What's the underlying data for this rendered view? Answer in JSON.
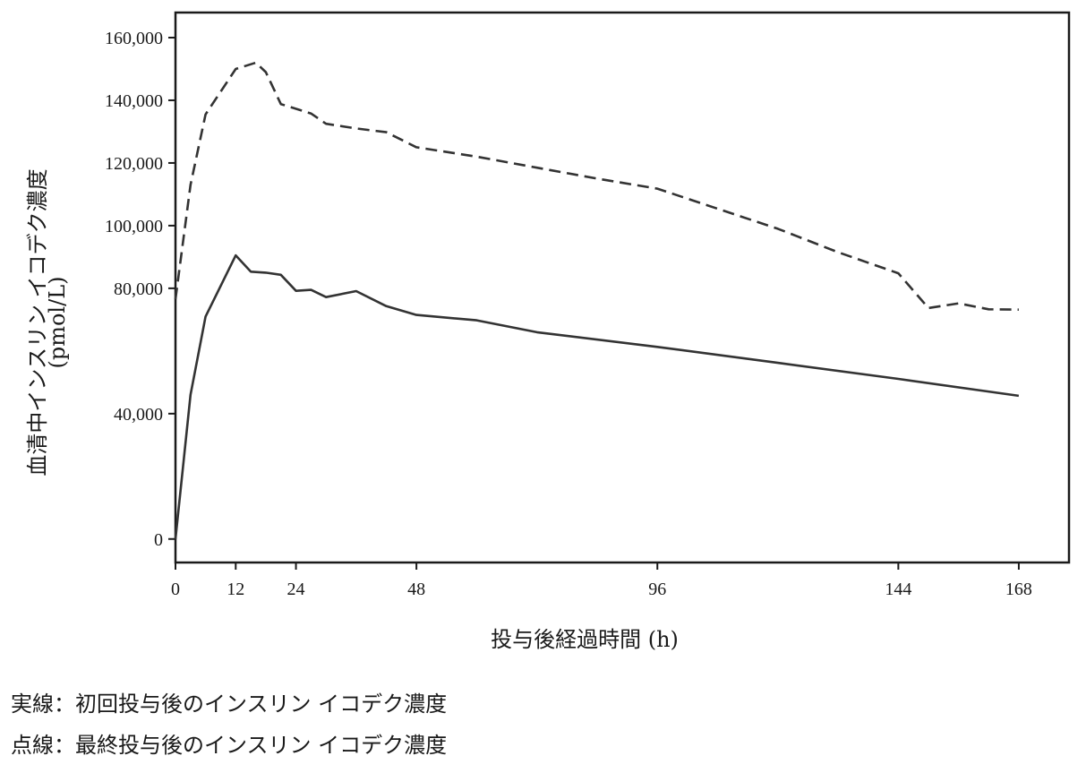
{
  "chart_data": {
    "type": "line",
    "title": "",
    "xlabel": "投与後経過時間 (h)",
    "ylabel_lines": [
      "血清中インスリン イコデク濃度",
      "(pmol/L)"
    ],
    "xlim": [
      0,
      178
    ],
    "ylim": [
      -7500,
      168000
    ],
    "x_ticks": [
      0,
      12,
      24,
      48,
      96,
      144,
      168
    ],
    "x_tick_labels": [
      "0",
      "12",
      "24",
      "48",
      "96",
      "144",
      "168"
    ],
    "y_ticks": [
      0,
      40000,
      80000,
      100000,
      120000,
      140000,
      160000
    ],
    "y_tick_labels": [
      "0",
      "40,000",
      "80,000",
      "100,000",
      "120,000",
      "140,000",
      "160,000"
    ],
    "grid": false,
    "series": [
      {
        "style": "solid",
        "color": "#333333",
        "points": [
          [
            0,
            0
          ],
          [
            3,
            46000
          ],
          [
            6,
            71000
          ],
          [
            12,
            90500
          ],
          [
            15,
            85300
          ],
          [
            18,
            85000
          ],
          [
            21,
            84300
          ],
          [
            24,
            79200
          ],
          [
            27,
            79500
          ],
          [
            30,
            77200
          ],
          [
            36,
            79100
          ],
          [
            42,
            74300
          ],
          [
            48,
            71500
          ],
          [
            60,
            69800
          ],
          [
            72,
            66000
          ],
          [
            96,
            61300
          ],
          [
            120,
            56200
          ],
          [
            144,
            51100
          ],
          [
            168,
            45700
          ]
        ]
      },
      {
        "style": "dashed",
        "color": "#333333",
        "points": [
          [
            0,
            76500
          ],
          [
            3,
            113000
          ],
          [
            6,
            135500
          ],
          [
            12,
            150000
          ],
          [
            16,
            152000
          ],
          [
            18,
            149000
          ],
          [
            21,
            138800
          ],
          [
            27,
            135800
          ],
          [
            30,
            132500
          ],
          [
            36,
            131000
          ],
          [
            42,
            129800
          ],
          [
            48,
            125000
          ],
          [
            60,
            122000
          ],
          [
            72,
            118500
          ],
          [
            84,
            115000
          ],
          [
            96,
            111800
          ],
          [
            120,
            99000
          ],
          [
            132,
            91500
          ],
          [
            144,
            84800
          ],
          [
            150,
            73700
          ],
          [
            156,
            75200
          ],
          [
            162,
            73300
          ],
          [
            168,
            73200
          ]
        ]
      }
    ]
  },
  "captions": {
    "solid": "実線：初回投与後のインスリン イコデク濃度",
    "dashed": "点線：最終投与後のインスリン イコデク濃度"
  }
}
